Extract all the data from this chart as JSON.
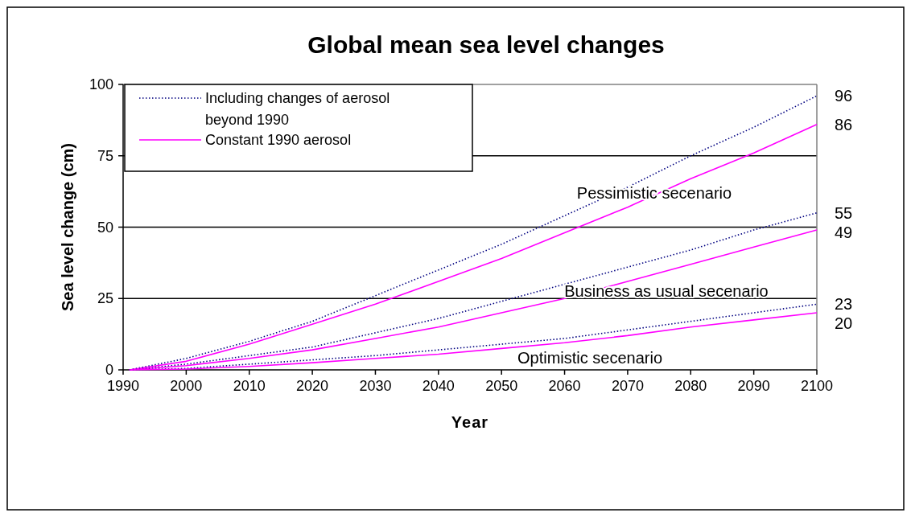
{
  "chart_data": {
    "type": "line",
    "title": "Global mean sea level changes",
    "xlabel": "Year",
    "ylabel": "Sea level change (cm)",
    "x": [
      1991,
      2000,
      2010,
      2020,
      2030,
      2040,
      2050,
      2060,
      2070,
      2080,
      2090,
      2100
    ],
    "xlim": [
      1990,
      2100
    ],
    "xticks": [
      1990,
      2000,
      2010,
      2020,
      2030,
      2040,
      2050,
      2060,
      2070,
      2080,
      2090,
      2100
    ],
    "ylim": [
      0,
      100
    ],
    "yticks": [
      0,
      25,
      50,
      75,
      100
    ],
    "grid": "y",
    "legend": "top left",
    "marker": "none",
    "series": [
      {
        "name": "Including changes of aerosol beyond 1990",
        "color": "#000080",
        "line_style": "dotted",
        "values": [
          0,
          4,
          10,
          17,
          26,
          35,
          44,
          54,
          64,
          75,
          85,
          96
        ],
        "value_labels": [
          null,
          null,
          null,
          null,
          null,
          null,
          null,
          null,
          null,
          null,
          null,
          "96"
        ]
      },
      {
        "name": "Constant 1990 aerosol",
        "color": "#ff00ff",
        "line_style": "solid",
        "values": [
          0,
          3,
          9,
          16,
          23,
          31,
          39,
          48,
          57,
          67,
          76,
          86
        ],
        "value_labels": [
          null,
          null,
          null,
          null,
          null,
          null,
          null,
          null,
          null,
          null,
          null,
          "86"
        ]
      },
      {
        "color": "#000080",
        "line_style": "dotted",
        "values": [
          0,
          2,
          5,
          8,
          13,
          18,
          24,
          30,
          36,
          42,
          49,
          55
        ],
        "value_labels": [
          null,
          null,
          null,
          null,
          null,
          null,
          null,
          null,
          null,
          null,
          null,
          "55"
        ]
      },
      {
        "color": "#ff00ff",
        "line_style": "solid",
        "values": [
          0,
          1.5,
          4,
          7,
          11,
          15,
          20,
          25,
          31,
          37,
          43,
          49
        ],
        "value_labels": [
          null,
          null,
          null,
          null,
          null,
          null,
          null,
          null,
          null,
          null,
          null,
          "49"
        ]
      },
      {
        "color": "#000080",
        "line_style": "dotted",
        "values": [
          0,
          0.5,
          2,
          3.5,
          5,
          7,
          9,
          11,
          14,
          17,
          20,
          23
        ],
        "value_labels": [
          null,
          null,
          null,
          null,
          null,
          null,
          null,
          null,
          null,
          null,
          null,
          "23"
        ]
      },
      {
        "color": "#ff00ff",
        "line_style": "solid",
        "values": [
          0,
          0.3,
          1.2,
          2.5,
          4,
          5.5,
          7.5,
          9.5,
          12,
          15,
          17.5,
          20
        ],
        "value_labels": [
          null,
          null,
          null,
          null,
          null,
          null,
          null,
          null,
          null,
          null,
          null,
          "20"
        ]
      }
    ],
    "annotations": [
      "Pessimistic secenario",
      "Business as usual secenario",
      "Optimistic secenario"
    ]
  }
}
